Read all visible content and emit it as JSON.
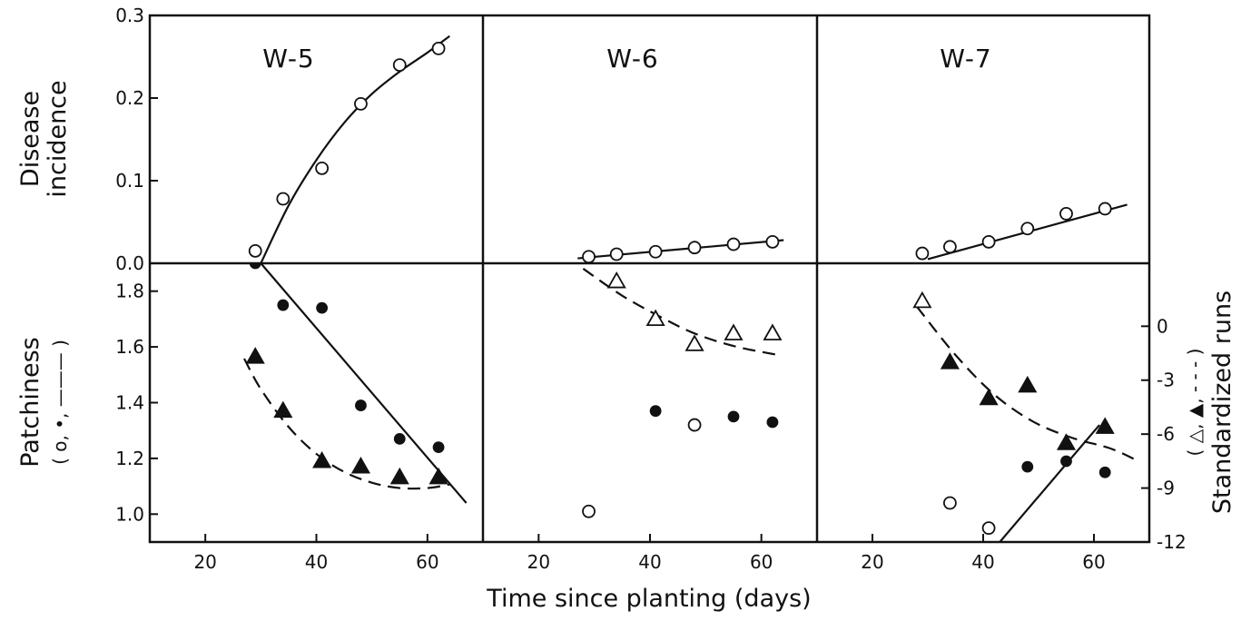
{
  "colors": {
    "ink": "#111111",
    "background": "#ffffff"
  },
  "chart_data": {
    "type": "scatter",
    "xlabel": "Time since planting (days)",
    "ylabel_top": [
      "Disease",
      "incidence"
    ],
    "ylabel_bottom": "Patchiness",
    "ylabel_bottom_symbols": "( o, •, ——— )",
    "ylabel_right": "Standardized runs",
    "ylabel_right_symbols": "( △, ▲, - - - )",
    "x_ticks": [
      "20",
      "40",
      "60"
    ],
    "x_tick_values": [
      20,
      40,
      60
    ],
    "xlim": [
      10,
      70
    ],
    "top": {
      "ylim": [
        0.0,
        0.3
      ],
      "y_ticks": [
        "0.0",
        "0.1",
        "0.2",
        "0.3"
      ],
      "y_tick_values": [
        0.0,
        0.1,
        0.2,
        0.3
      ]
    },
    "bottom_left": {
      "ylim": [
        0.9,
        1.9
      ],
      "y_ticks": [
        "1.0",
        "1.2",
        "1.4",
        "1.6",
        "1.8"
      ],
      "y_tick_values": [
        1.0,
        1.2,
        1.4,
        1.6,
        1.8
      ]
    },
    "bottom_right": {
      "ylim": [
        -12,
        3.5
      ],
      "y_ticks": [
        "0",
        "-3",
        "-6",
        "-9",
        "-12"
      ],
      "y_tick_values": [
        0,
        -3,
        -6,
        -9,
        -12
      ]
    },
    "panels": [
      {
        "title": "W-5",
        "incidence": {
          "points": [
            [
              29,
              0.015
            ],
            [
              34,
              0.078
            ],
            [
              41,
              0.115
            ],
            [
              48,
              0.193
            ],
            [
              55,
              0.24
            ],
            [
              62,
              0.26
            ]
          ],
          "curve": [
            [
              30,
              0.0
            ],
            [
              35,
              0.07
            ],
            [
              40,
              0.125
            ],
            [
              45,
              0.17
            ],
            [
              50,
              0.205
            ],
            [
              55,
              0.232
            ],
            [
              60,
              0.255
            ],
            [
              64,
              0.275
            ]
          ]
        },
        "patchiness_open": [],
        "patchiness_filled": [
          [
            29,
            1.9
          ],
          [
            34,
            1.75
          ],
          [
            41,
            1.74
          ],
          [
            48,
            1.39
          ],
          [
            55,
            1.27
          ],
          [
            62,
            1.24
          ]
        ],
        "patchiness_line": [
          [
            30,
            1.9
          ],
          [
            67,
            1.04
          ]
        ],
        "runs_open": [],
        "runs_filled": [
          [
            29,
            -1.7
          ],
          [
            34,
            -4.7
          ],
          [
            41,
            -7.5
          ],
          [
            48,
            -7.8
          ],
          [
            55,
            -8.4
          ],
          [
            62,
            -8.4
          ]
        ],
        "runs_curve": [
          [
            27,
            -1.8
          ],
          [
            30,
            -3.5
          ],
          [
            35,
            -5.6
          ],
          [
            40,
            -7.1
          ],
          [
            45,
            -8.1
          ],
          [
            50,
            -8.7
          ],
          [
            55,
            -9.0
          ],
          [
            60,
            -9.0
          ],
          [
            64,
            -8.8
          ]
        ]
      },
      {
        "title": "W-6",
        "incidence": {
          "points": [
            [
              29,
              0.008
            ],
            [
              34,
              0.011
            ],
            [
              41,
              0.014
            ],
            [
              48,
              0.019
            ],
            [
              55,
              0.023
            ],
            [
              62,
              0.026
            ]
          ],
          "curve": [
            [
              27,
              0.006
            ],
            [
              64,
              0.028
            ]
          ]
        },
        "patchiness_open": [
          [
            29,
            1.01
          ],
          [
            48,
            1.32
          ]
        ],
        "patchiness_filled": [
          [
            41,
            1.37
          ],
          [
            55,
            1.35
          ],
          [
            62,
            1.33
          ]
        ],
        "patchiness_line": [],
        "runs_open": [
          [
            34,
            2.5
          ],
          [
            41,
            0.4
          ],
          [
            48,
            -1.0
          ],
          [
            55,
            -0.4
          ],
          [
            62,
            -0.4
          ]
        ],
        "runs_filled": [],
        "runs_curve": [
          [
            28,
            3.2
          ],
          [
            35,
            1.7
          ],
          [
            42,
            0.5
          ],
          [
            48,
            -0.4
          ],
          [
            55,
            -1.1
          ],
          [
            63,
            -1.6
          ]
        ]
      },
      {
        "title": "W-7",
        "incidence": {
          "points": [
            [
              29,
              0.012
            ],
            [
              34,
              0.02
            ],
            [
              41,
              0.026
            ],
            [
              48,
              0.042
            ],
            [
              55,
              0.06
            ],
            [
              62,
              0.066
            ]
          ],
          "curve": [
            [
              30,
              0.005
            ],
            [
              66,
              0.071
            ]
          ]
        },
        "patchiness_open": [
          [
            34,
            1.04
          ],
          [
            41,
            0.95
          ]
        ],
        "patchiness_filled": [
          [
            48,
            1.17
          ],
          [
            55,
            1.19
          ],
          [
            62,
            1.15
          ]
        ],
        "patchiness_line": [
          [
            43,
            0.9
          ],
          [
            61,
            1.32
          ]
        ],
        "runs_open": [
          [
            29,
            1.4
          ]
        ],
        "runs_filled": [
          [
            34,
            -2.0
          ],
          [
            41,
            -4.0
          ],
          [
            48,
            -3.3
          ],
          [
            55,
            -6.5
          ],
          [
            62,
            -5.6
          ]
        ],
        "runs_curve": [
          [
            28,
            1.1
          ],
          [
            35,
            -1.6
          ],
          [
            42,
            -3.8
          ],
          [
            49,
            -5.3
          ],
          [
            56,
            -6.2
          ],
          [
            63,
            -6.8
          ],
          [
            68,
            -7.5
          ]
        ]
      }
    ]
  }
}
